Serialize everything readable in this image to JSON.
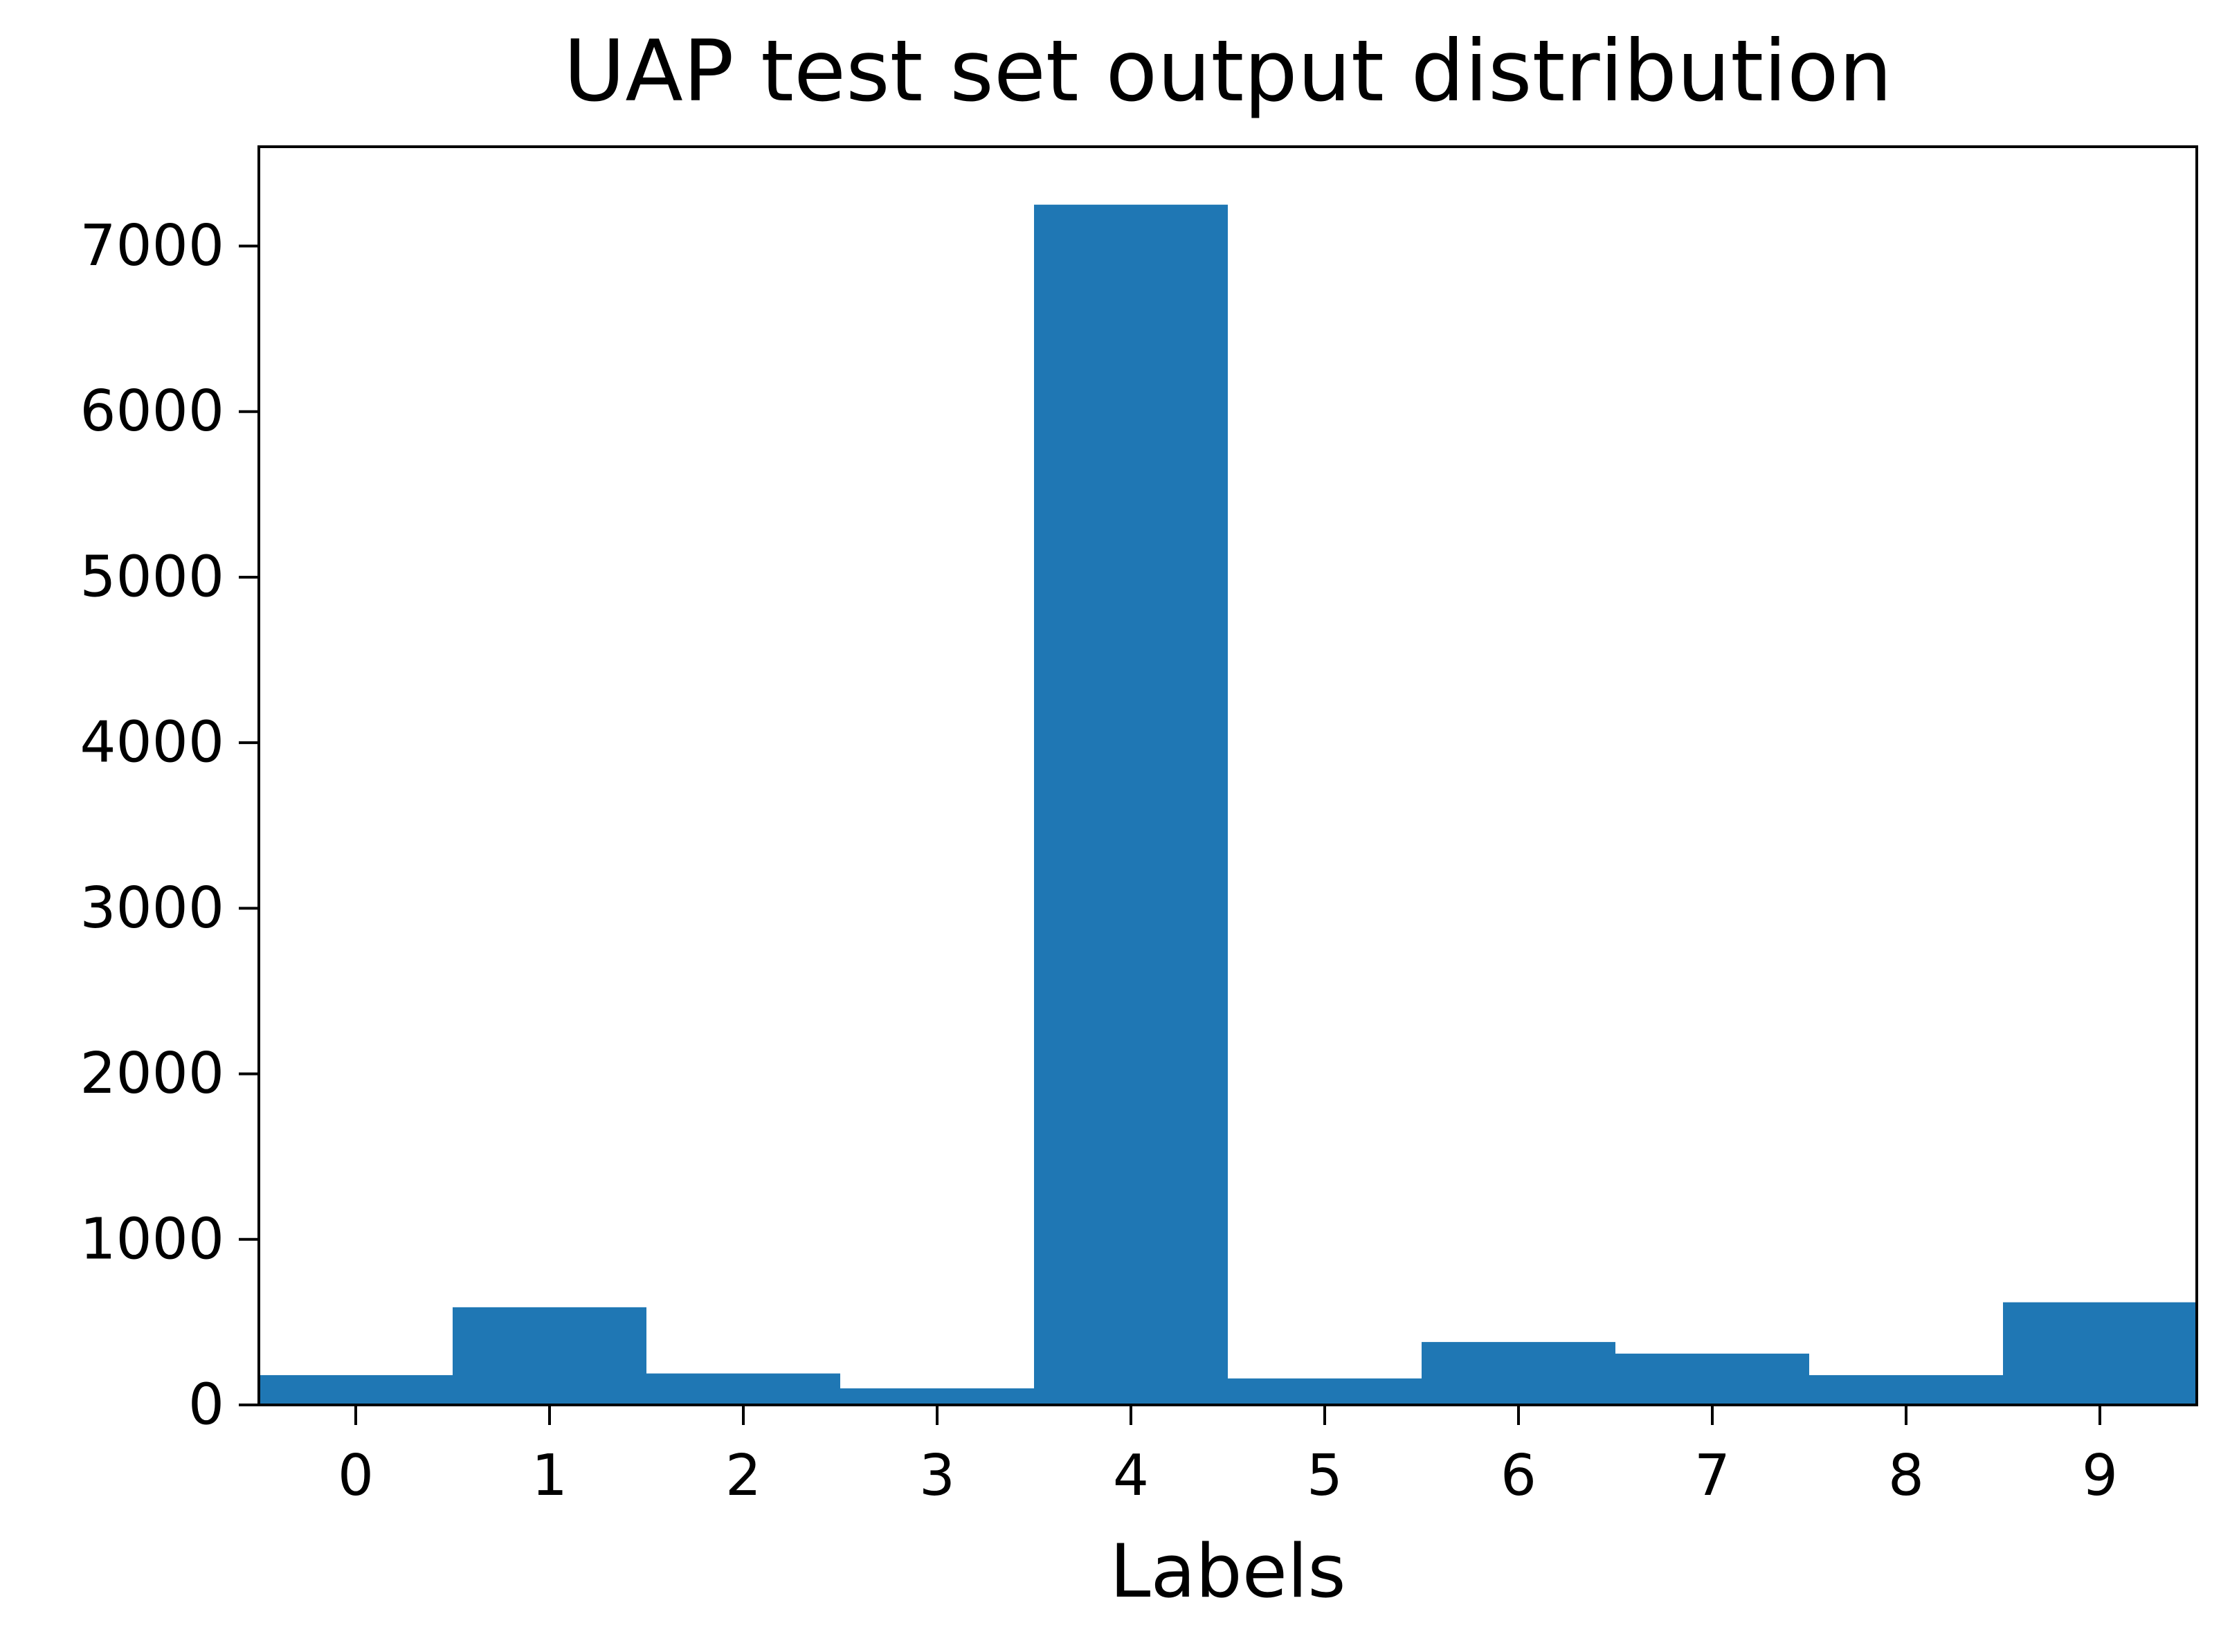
{
  "chart_data": {
    "type": "bar",
    "title": "UAP test set output distribution",
    "xlabel": "Labels",
    "ylabel": "",
    "categories": [
      "0",
      "1",
      "2",
      "3",
      "4",
      "5",
      "6",
      "7",
      "8",
      "9"
    ],
    "values": [
      180,
      590,
      190,
      100,
      7250,
      160,
      380,
      310,
      180,
      620
    ],
    "xlim": [
      -0.5,
      9.5
    ],
    "ylim": [
      0,
      7600
    ],
    "yticks": [
      0,
      1000,
      2000,
      3000,
      4000,
      5000,
      6000,
      7000
    ],
    "ytick_labels": [
      "0",
      "1000",
      "2000",
      "3000",
      "4000",
      "5000",
      "6000",
      "7000"
    ],
    "bar_color": "#1f77b4",
    "grid": false,
    "legend": "none"
  }
}
